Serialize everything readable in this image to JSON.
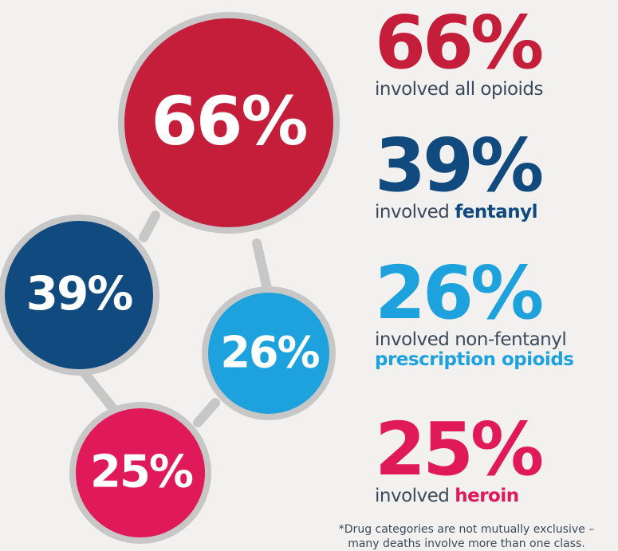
{
  "colors": {
    "red": "#c41e3a",
    "navy": "#114a7e",
    "light_blue": "#1ea2dd",
    "pink": "#e0195a",
    "ring": "#c7c7c7",
    "text": "#3b4a5a"
  },
  "bubbles": {
    "all_opioids": "66%",
    "fentanyl": "39%",
    "non_fentanyl_rx": "26%",
    "heroin": "25%"
  },
  "stats": [
    {
      "value": "66%",
      "desc_plain": "involved all opioids",
      "desc_bold": ""
    },
    {
      "value": "39%",
      "desc_plain": "involved ",
      "desc_bold": "fentanyl"
    },
    {
      "value": "26%",
      "desc_plain": "involved non-fentanyl",
      "desc_bold": "prescription opioids"
    },
    {
      "value": "25%",
      "desc_plain": "involved ",
      "desc_bold": "heroin"
    }
  ],
  "footnote": {
    "line1": "*Drug categories are not mutually exclusive –",
    "line2": "many deaths involve more than one class."
  }
}
